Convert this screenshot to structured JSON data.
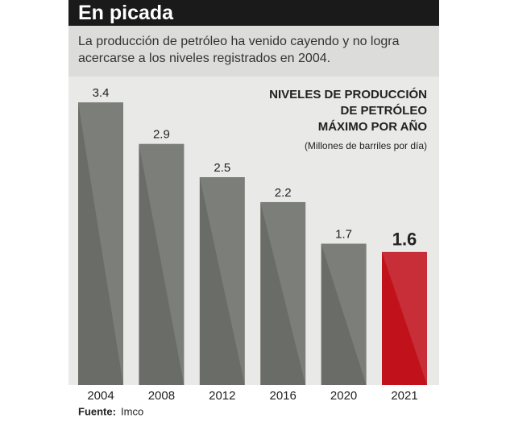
{
  "chart_data": {
    "type": "bar",
    "title": "En picada",
    "subtitle": "La producción de petróleo ha venido cayendo y no logra acercarse a los niveles registrados en 2004.",
    "legend_title": [
      "NIVELES DE PRODUCCIÓN",
      "DE PETRÓLEO",
      "MÁXIMO POR AÑO"
    ],
    "unit": "(Millones de barriles por día)",
    "categories": [
      "2004",
      "2008",
      "2012",
      "2016",
      "2020",
      "2021"
    ],
    "values": [
      3.4,
      2.9,
      2.5,
      2.2,
      1.7,
      1.6
    ],
    "colors": [
      "#6a6d67",
      "#6a6d67",
      "#6a6d67",
      "#6a6d67",
      "#6a6d67",
      "#c1121c"
    ],
    "source_label": "Fuente:",
    "source": "Imco"
  }
}
